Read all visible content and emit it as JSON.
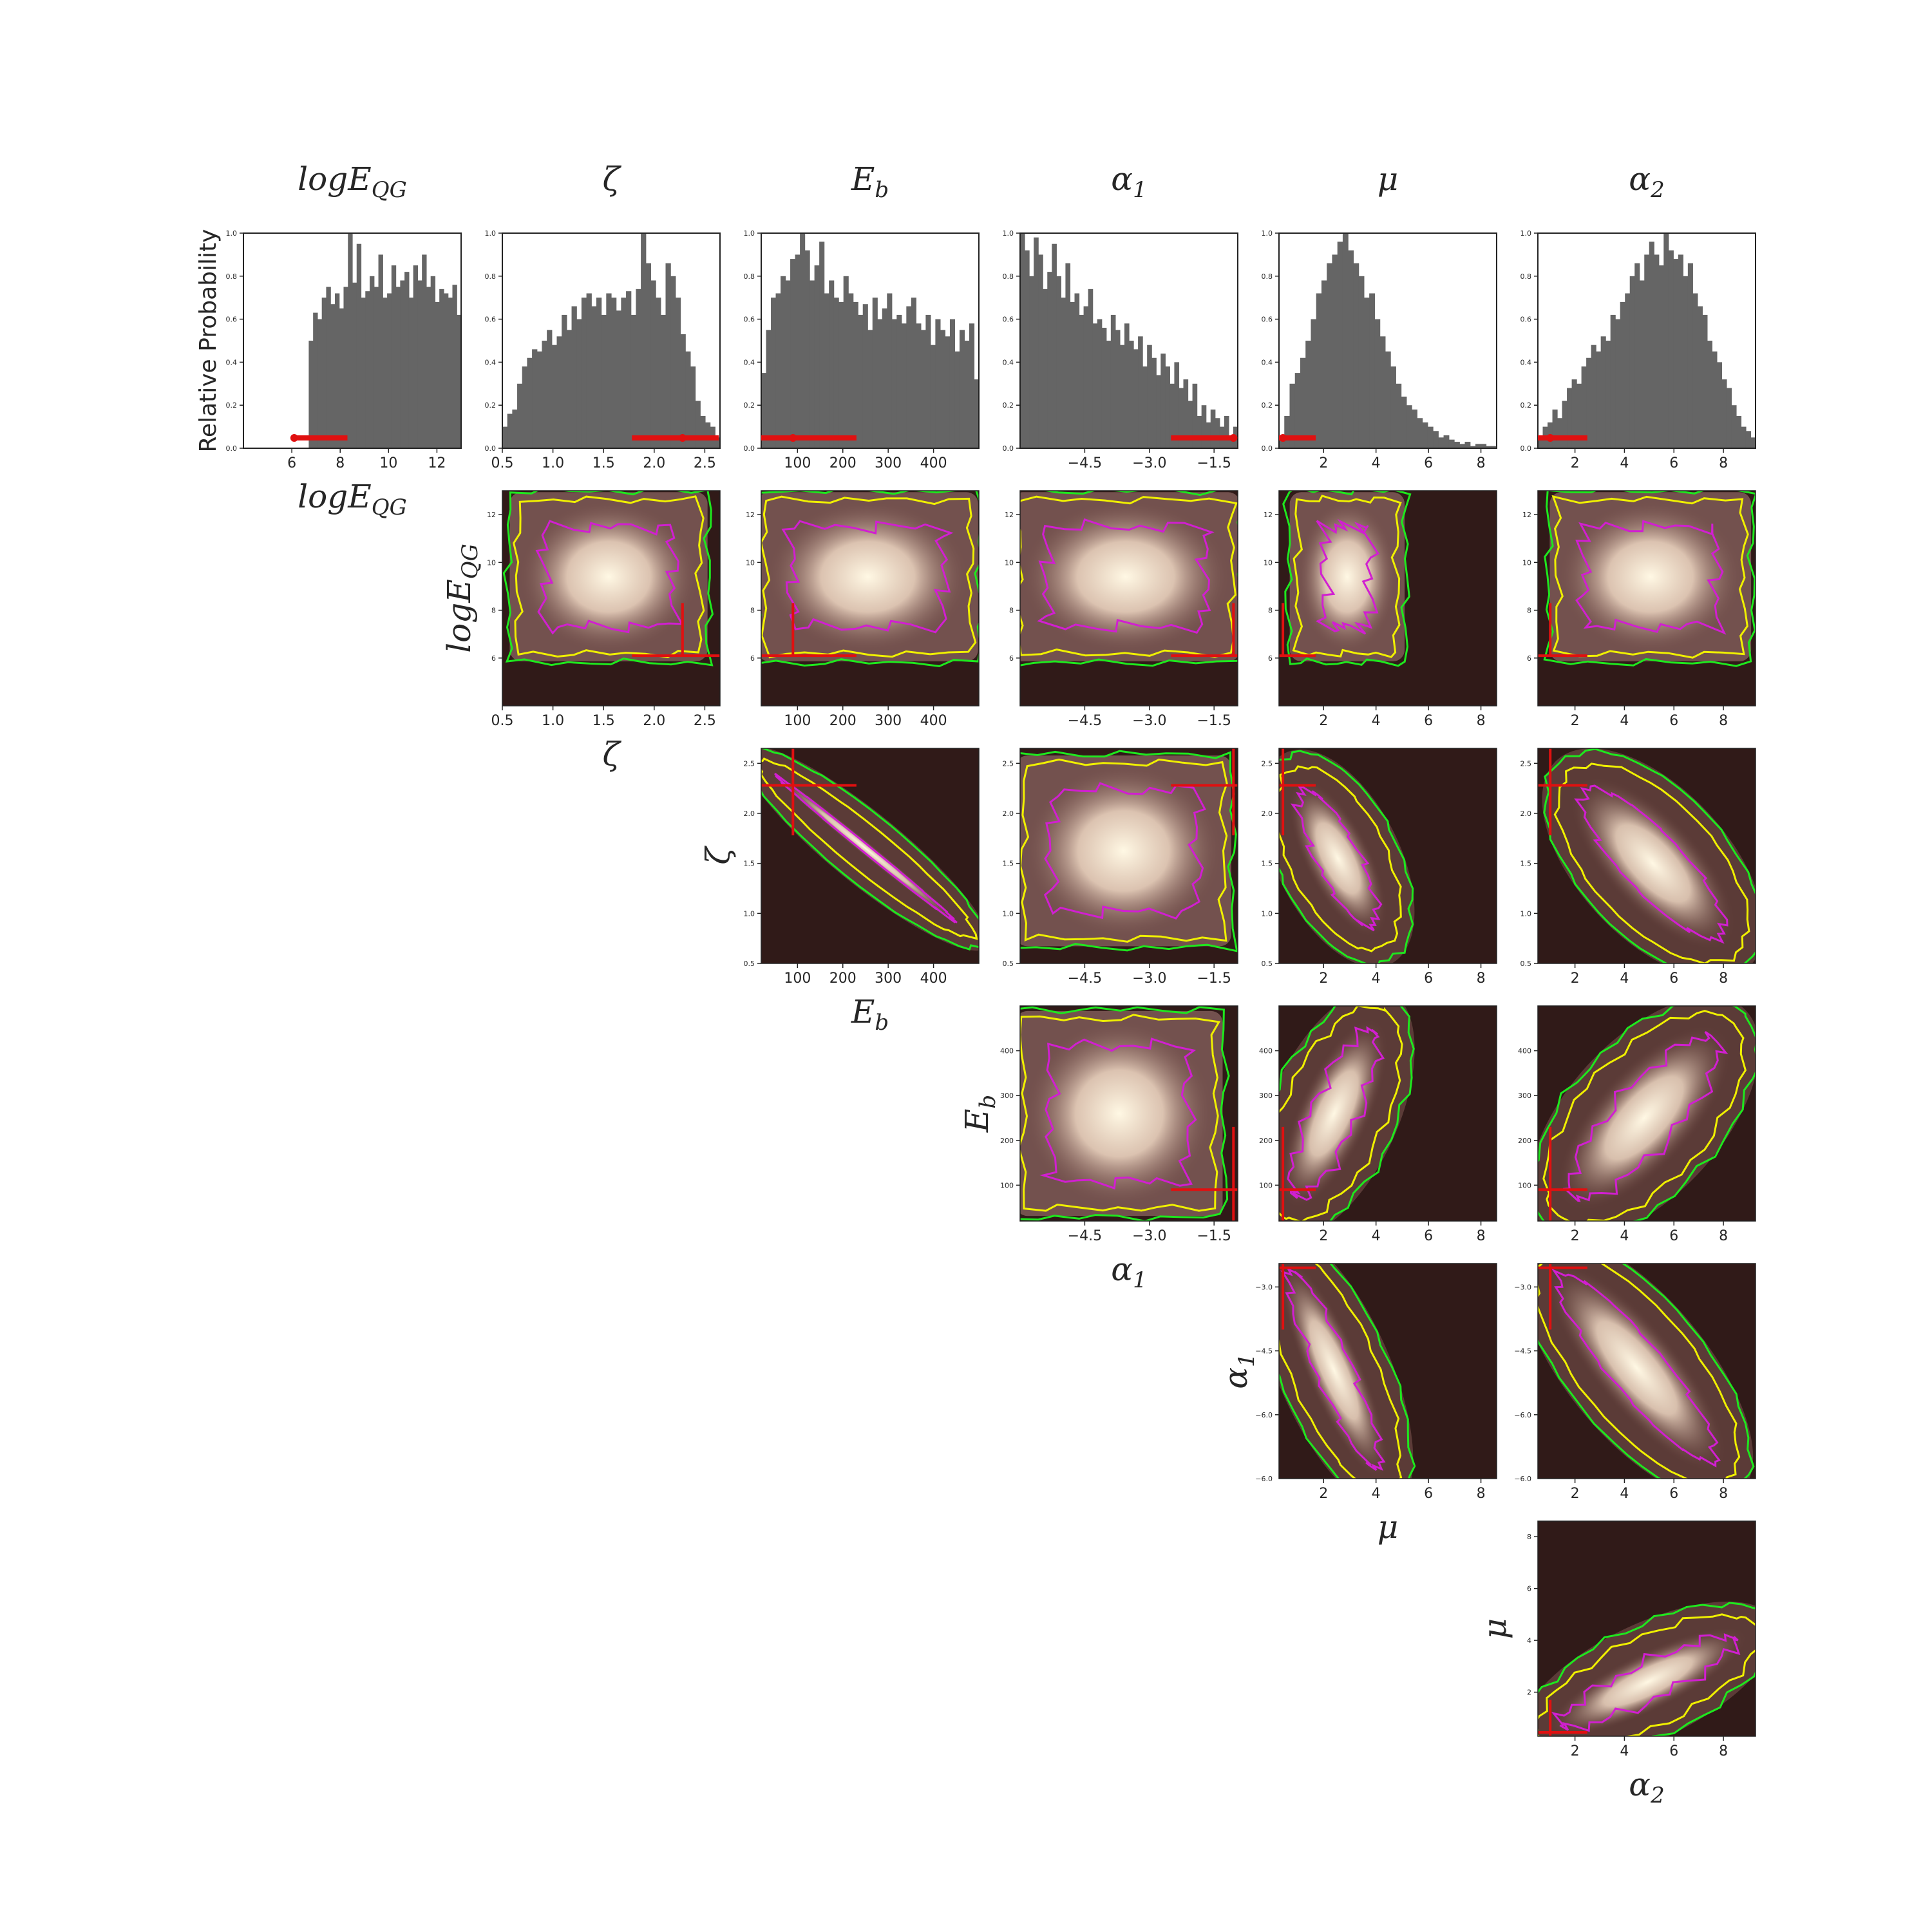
{
  "figure": {
    "ylabel_hist": "Relative Probability",
    "params": [
      {
        "key": "logEQG",
        "label": "logE",
        "sub": "QG",
        "range": [
          4.0,
          13.0
        ],
        "ticks": [
          6,
          8,
          10,
          12
        ],
        "ticklabels": [
          "6",
          "8",
          "10",
          "12"
        ],
        "truth": 6.1,
        "interval": [
          6.1,
          8.3
        ]
      },
      {
        "key": "zeta",
        "label": "ζ",
        "sub": "",
        "range": [
          0.5,
          2.65
        ],
        "ticks": [
          0.5,
          1.0,
          1.5,
          2.0,
          2.5
        ],
        "ticklabels": [
          "0.5",
          "1.0",
          "1.5",
          "2.0",
          "2.5"
        ],
        "truth": 2.28,
        "interval": [
          1.78,
          2.65
        ]
      },
      {
        "key": "Eb",
        "label": "E",
        "sub": "b",
        "range": [
          20,
          500
        ],
        "ticks": [
          100,
          200,
          300,
          400
        ],
        "ticklabels": [
          "100",
          "200",
          "300",
          "400"
        ],
        "truth": 90,
        "interval": [
          20,
          230
        ]
      },
      {
        "key": "alpha1",
        "label": "α",
        "sub": "1",
        "range": [
          -6.0,
          -0.95
        ],
        "ticks": [
          -4.5,
          -3.0,
          -1.5
        ],
        "ticklabels": [
          "−4.5",
          "−3.0",
          "−1.5"
        ],
        "truth": -1.05,
        "interval": [
          -2.5,
          -0.95
        ]
      },
      {
        "key": "mu",
        "label": "μ",
        "sub": "",
        "range": [
          0.3,
          8.6
        ],
        "ticks": [
          2,
          4,
          6,
          8
        ],
        "ticklabels": [
          "2",
          "4",
          "6",
          "8"
        ],
        "truth": 0.45,
        "interval": [
          0.3,
          1.7
        ]
      },
      {
        "key": "alpha2",
        "label": "α",
        "sub": "2",
        "range": [
          0.5,
          9.3
        ],
        "ticks": [
          2,
          4,
          6,
          8
        ],
        "ticklabels": [
          "2",
          "4",
          "6",
          "8"
        ],
        "truth": 1.0,
        "interval": [
          0.5,
          2.5
        ]
      }
    ],
    "yticks_2d": {
      "logEQG": [
        "6",
        "8",
        "10",
        "12"
      ],
      "zeta": [
        "0.5",
        "1.0",
        "1.5",
        "2.0",
        "2.5"
      ],
      "Eb": [
        "100",
        "200",
        "300",
        "400"
      ],
      "alpha1": [
        "−6.0",
        "−4.5",
        "−3.0",
        "−1.5"
      ],
      "mu": [
        "2",
        "4",
        "6",
        "8"
      ]
    },
    "hist_yticks": [
      "0.0",
      "0.2",
      "0.4",
      "0.6",
      "0.8",
      "1.0"
    ]
  },
  "chart_data": {
    "type": "corner",
    "histograms": {
      "logEQG": [
        0,
        0,
        0,
        0,
        0,
        0,
        0,
        0,
        0,
        0,
        0,
        0,
        0,
        0,
        0,
        0.5,
        0.63,
        0.6,
        0.7,
        0.75,
        0.67,
        0.72,
        0.65,
        0.75,
        1.0,
        0.77,
        0.95,
        0.7,
        0.73,
        0.8,
        0.75,
        0.9,
        0.7,
        0.72,
        0.85,
        0.75,
        0.78,
        0.82,
        0.7,
        0.85,
        0.78,
        0.9,
        0.75,
        0.8,
        0.68,
        0.74,
        0.72,
        0.7,
        0.76,
        0.62
      ],
      "zeta": [
        0.1,
        0.16,
        0.18,
        0.3,
        0.38,
        0.42,
        0.46,
        0.45,
        0.5,
        0.55,
        0.48,
        0.52,
        0.62,
        0.55,
        0.66,
        0.6,
        0.7,
        0.72,
        0.66,
        0.7,
        0.62,
        0.72,
        0.7,
        0.64,
        0.7,
        0.73,
        0.62,
        0.74,
        1.0,
        0.86,
        0.78,
        0.7,
        0.62,
        0.86,
        0.8,
        0.7,
        0.53,
        0.45,
        0.38,
        0.22,
        0.15,
        0.12,
        0.1,
        0.05
      ],
      "Eb": [
        0.35,
        0.55,
        0.7,
        0.72,
        0.8,
        0.78,
        0.88,
        0.9,
        1.0,
        0.92,
        0.78,
        0.85,
        0.96,
        0.72,
        0.78,
        0.7,
        0.68,
        0.8,
        0.72,
        0.68,
        0.62,
        0.67,
        0.55,
        0.7,
        0.6,
        0.65,
        0.72,
        0.6,
        0.62,
        0.58,
        0.66,
        0.7,
        0.58,
        0.55,
        0.62,
        0.48,
        0.6,
        0.55,
        0.52,
        0.6,
        0.45,
        0.55,
        0.5,
        0.58,
        0.32
      ],
      "alpha1": [
        1.0,
        0.92,
        0.8,
        0.98,
        0.9,
        0.74,
        0.82,
        0.95,
        0.8,
        0.7,
        0.86,
        0.68,
        0.72,
        0.62,
        0.66,
        0.74,
        0.58,
        0.6,
        0.56,
        0.5,
        0.62,
        0.55,
        0.48,
        0.58,
        0.5,
        0.46,
        0.52,
        0.38,
        0.48,
        0.42,
        0.34,
        0.44,
        0.38,
        0.3,
        0.4,
        0.28,
        0.32,
        0.22,
        0.3,
        0.15,
        0.2,
        0.12,
        0.18,
        0.14,
        0.1,
        0.15,
        0.06,
        0.1
      ],
      "mu": [
        0.05,
        0.15,
        0.3,
        0.35,
        0.42,
        0.5,
        0.6,
        0.72,
        0.78,
        0.86,
        0.9,
        0.96,
        1.0,
        0.92,
        0.86,
        0.8,
        0.7,
        0.72,
        0.6,
        0.52,
        0.45,
        0.38,
        0.3,
        0.24,
        0.2,
        0.18,
        0.14,
        0.12,
        0.1,
        0.08,
        0.05,
        0.06,
        0.04,
        0.03,
        0.02,
        0.03,
        0.01,
        0.02,
        0.02,
        0.01,
        0.01
      ],
      "alpha2": [
        0.05,
        0.1,
        0.12,
        0.18,
        0.14,
        0.22,
        0.28,
        0.32,
        0.3,
        0.38,
        0.42,
        0.48,
        0.45,
        0.52,
        0.5,
        0.62,
        0.6,
        0.68,
        0.72,
        0.8,
        0.86,
        0.78,
        0.9,
        0.96,
        0.9,
        0.85,
        1.0,
        0.92,
        0.88,
        0.9,
        0.8,
        0.86,
        0.72,
        0.66,
        0.62,
        0.5,
        0.45,
        0.4,
        0.32,
        0.28,
        0.2,
        0.15,
        0.1,
        0.08,
        0.05
      ]
    },
    "pairs_2d": [
      {
        "x": "zeta",
        "y": "logEQG",
        "shape": "box",
        "box_x": [
          0.7,
          2.4
        ],
        "box_y": [
          6.4,
          12.4
        ],
        "corr": 0
      },
      {
        "x": "Eb",
        "y": "logEQG",
        "shape": "box",
        "box_x": [
          40,
          470
        ],
        "box_y": [
          6.4,
          12.4
        ],
        "corr": 0
      },
      {
        "x": "alpha1",
        "y": "logEQG",
        "shape": "box",
        "box_x": [
          -5.9,
          -1.2
        ],
        "box_y": [
          6.4,
          12.4
        ],
        "corr": 0
      },
      {
        "x": "mu",
        "y": "logEQG",
        "shape": "box",
        "box_x": [
          1.2,
          4.6
        ],
        "box_y": [
          6.4,
          12.4
        ],
        "corr": 0
      },
      {
        "x": "alpha2",
        "y": "logEQG",
        "shape": "box",
        "box_x": [
          1.5,
          8.6
        ],
        "box_y": [
          6.4,
          12.4
        ],
        "corr": 0
      },
      {
        "x": "Eb",
        "y": "zeta",
        "shape": "band",
        "center": [
          [
            60,
            2.35
          ],
          [
            440,
            0.95
          ]
        ],
        "width": 0.18
      },
      {
        "x": "alpha1",
        "y": "zeta",
        "shape": "box",
        "box_x": [
          -5.8,
          -1.4
        ],
        "box_y": [
          0.8,
          2.45
        ],
        "corr": 0
      },
      {
        "x": "mu",
        "y": "zeta",
        "shape": "band",
        "center": [
          [
            1.3,
            2.2
          ],
          [
            3.8,
            0.9
          ]
        ],
        "width": 1.0
      },
      {
        "x": "alpha2",
        "y": "zeta",
        "shape": "band",
        "center": [
          [
            2.5,
            2.2
          ],
          [
            7.8,
            0.8
          ]
        ],
        "width": 1.6
      },
      {
        "x": "alpha1",
        "y": "Eb",
        "shape": "box",
        "box_x": [
          -5.8,
          -1.6
        ],
        "box_y": [
          60,
          460
        ],
        "corr": 0.3
      },
      {
        "x": "mu",
        "y": "Eb",
        "shape": "band",
        "center": [
          [
            1.0,
            80
          ],
          [
            3.8,
            440
          ]
        ],
        "width": 1.1
      },
      {
        "x": "alpha2",
        "y": "Eb",
        "shape": "band",
        "center": [
          [
            2.0,
            80
          ],
          [
            7.6,
            420
          ]
        ],
        "width": 1.7
      },
      {
        "x": "mu",
        "y": "alpha1",
        "shape": "band",
        "center": [
          [
            0.8,
            -1.2
          ],
          [
            4.0,
            -5.7
          ]
        ],
        "width": 0.8
      },
      {
        "x": "alpha2",
        "y": "alpha1",
        "shape": "band",
        "center": [
          [
            1.5,
            -1.3
          ],
          [
            7.5,
            -5.5
          ]
        ],
        "width": 1.4
      },
      {
        "x": "alpha2",
        "y": "mu",
        "shape": "band",
        "center": [
          [
            1.5,
            0.8
          ],
          [
            8.4,
            4.0
          ]
        ],
        "width": 0.9
      }
    ],
    "contour_colors": {
      "inner": "#d11fd1",
      "mid": "#f0f000",
      "outer": "#1ee81e"
    },
    "truth_color": "#e01010",
    "hist_color": "#656565"
  }
}
